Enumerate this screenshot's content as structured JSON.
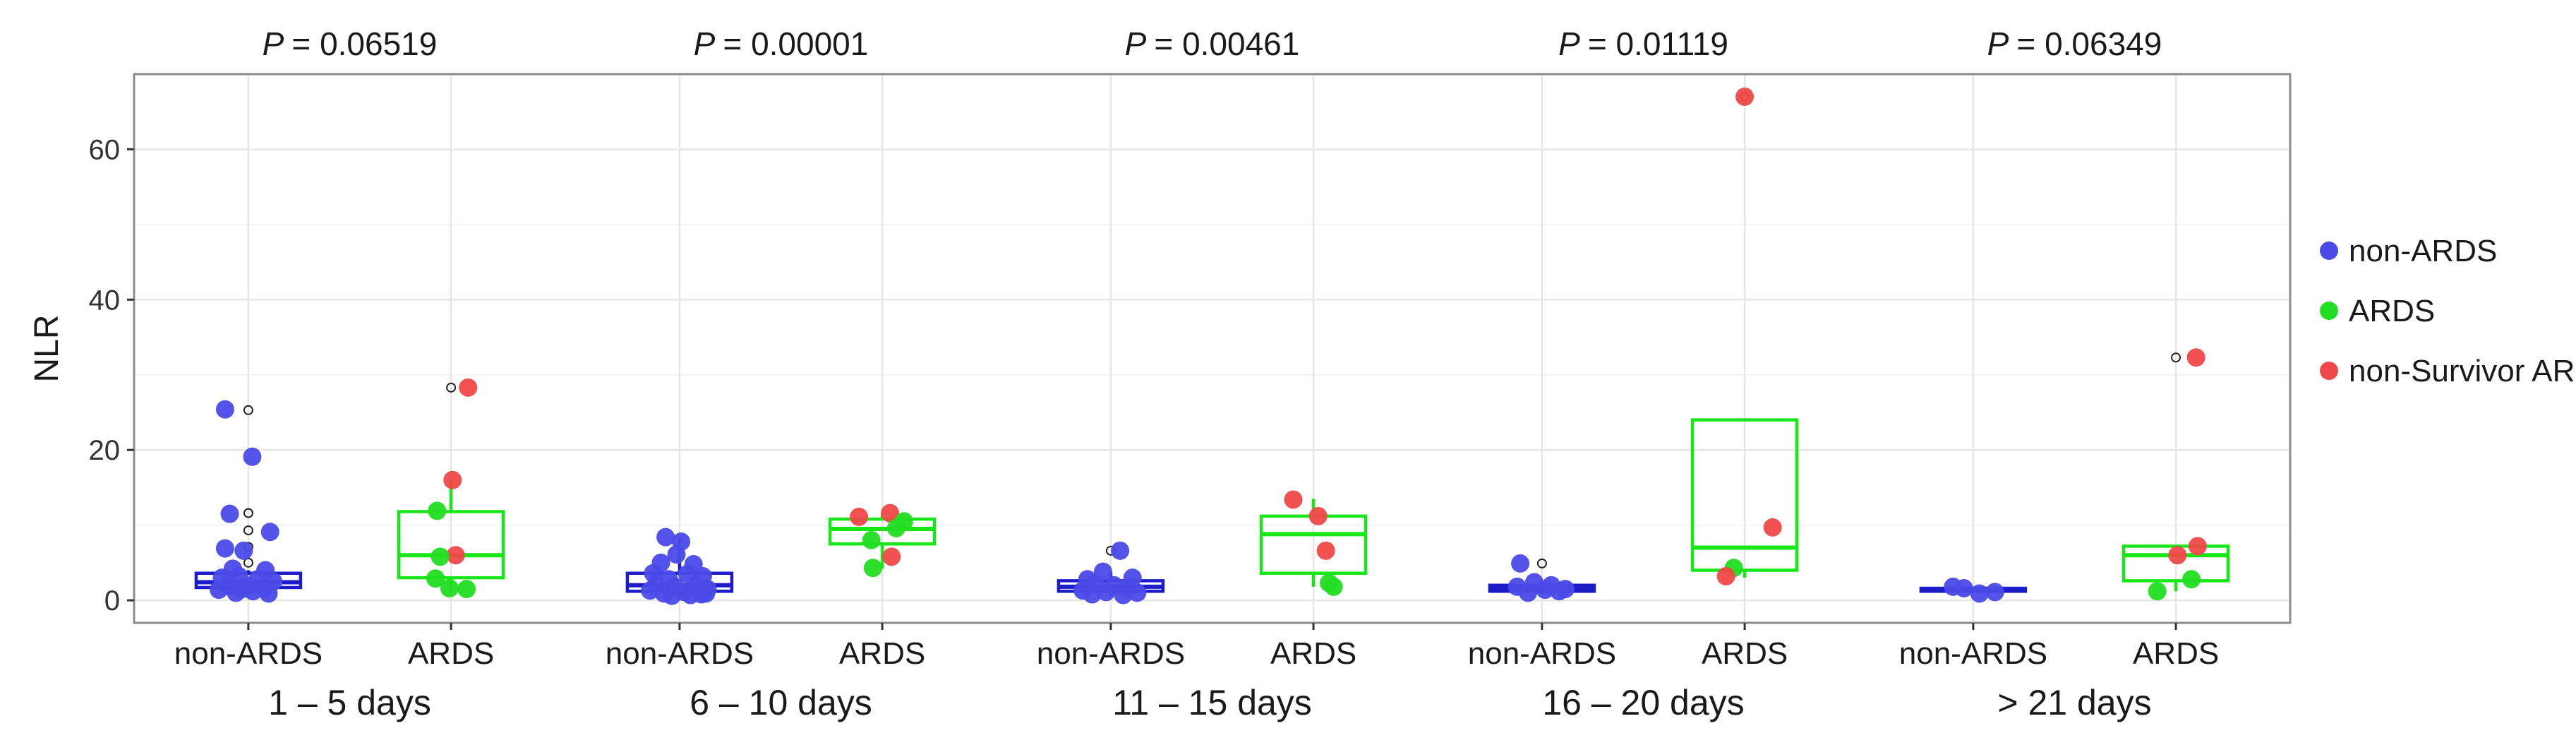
{
  "chart_data": {
    "type": "box",
    "ylabel": "NLR",
    "xlabel": "",
    "ylim": [
      -3,
      70
    ],
    "yticks": [
      0,
      20,
      40,
      60
    ],
    "grid": true,
    "legend_position": "right",
    "colors": {
      "non-ARDS": "#4a4ae8",
      "ARDS": "#22dd22",
      "non-Survivor ARDS": "#f04848",
      "box_non-ARDS": "#1c1cc8",
      "box_ARDS": "#19e619",
      "grid": "#e6e6e6",
      "panel_border": "#8c8c8c"
    },
    "legend": [
      {
        "label": "non-ARDS",
        "color": "#4a4ae8"
      },
      {
        "label": "ARDS",
        "color": "#22dd22"
      },
      {
        "label": "non-Survivor ARDS",
        "color": "#f04848"
      }
    ],
    "groups": [
      {
        "label": "1 – 5 days",
        "p_prefix": "P",
        "p_value": "= 0.06519",
        "boxes": [
          {
            "category": "non-ARDS",
            "q1": 1.7,
            "median": 2.4,
            "q3": 3.6,
            "whisker_low": 0.8,
            "whisker_high": 4.0,
            "outliers": [
              25.3,
              11.6,
              9.3,
              7.1,
              5.0
            ],
            "points": [
              {
                "x": -0.3,
                "y": 25.4,
                "group": "non-ARDS"
              },
              {
                "x": 0.05,
                "y": 19.1,
                "group": "non-ARDS"
              },
              {
                "x": -0.24,
                "y": 11.5,
                "group": "non-ARDS"
              },
              {
                "x": 0.28,
                "y": 9.1,
                "group": "non-ARDS"
              },
              {
                "x": -0.3,
                "y": 6.9,
                "group": "non-ARDS"
              },
              {
                "x": -0.06,
                "y": 6.6,
                "group": "non-ARDS"
              },
              {
                "x": 0.22,
                "y": 4.0,
                "group": "non-ARDS"
              },
              {
                "x": -0.2,
                "y": 4.2,
                "group": "non-ARDS"
              },
              {
                "x": -0.34,
                "y": 3.0,
                "group": "non-ARDS"
              },
              {
                "x": -0.12,
                "y": 3.2,
                "group": "non-ARDS"
              },
              {
                "x": 0.12,
                "y": 2.8,
                "group": "non-ARDS"
              },
              {
                "x": 0.32,
                "y": 2.5,
                "group": "non-ARDS"
              },
              {
                "x": -0.26,
                "y": 2.0,
                "group": "non-ARDS"
              },
              {
                "x": -0.02,
                "y": 1.9,
                "group": "non-ARDS"
              },
              {
                "x": 0.2,
                "y": 1.6,
                "group": "non-ARDS"
              },
              {
                "x": -0.38,
                "y": 1.4,
                "group": "non-ARDS"
              },
              {
                "x": 0.06,
                "y": 1.2,
                "group": "non-ARDS"
              },
              {
                "x": -0.16,
                "y": 1.0,
                "group": "non-ARDS"
              },
              {
                "x": 0.26,
                "y": 0.9,
                "group": "non-ARDS"
              },
              {
                "x": -0.08,
                "y": 1.5,
                "group": "non-ARDS"
              }
            ]
          },
          {
            "category": "ARDS",
            "q1": 3.0,
            "median": 6.0,
            "q3": 11.8,
            "whisker_low": 1.5,
            "whisker_high": 16.0,
            "outliers": [
              28.3
            ],
            "points": [
              {
                "x": 0.22,
                "y": 28.3,
                "group": "non-Survivor ARDS"
              },
              {
                "x": 0.02,
                "y": 16.0,
                "group": "non-Survivor ARDS"
              },
              {
                "x": -0.18,
                "y": 11.9,
                "group": "ARDS"
              },
              {
                "x": 0.06,
                "y": 6.0,
                "group": "non-Survivor ARDS"
              },
              {
                "x": -0.14,
                "y": 5.8,
                "group": "ARDS"
              },
              {
                "x": -0.2,
                "y": 2.9,
                "group": "ARDS"
              },
              {
                "x": -0.02,
                "y": 1.6,
                "group": "ARDS"
              },
              {
                "x": 0.2,
                "y": 1.5,
                "group": "ARDS"
              }
            ]
          }
        ]
      },
      {
        "label": "6 – 10 days",
        "p_prefix": "P",
        "p_value": "= 0.00001",
        "boxes": [
          {
            "category": "non-ARDS",
            "q1": 1.2,
            "median": 2.0,
            "q3": 3.6,
            "whisker_low": 0.5,
            "whisker_high": 8.3,
            "outliers": [],
            "points": [
              {
                "x": -0.18,
                "y": 8.4,
                "group": "non-ARDS"
              },
              {
                "x": 0.02,
                "y": 7.8,
                "group": "non-ARDS"
              },
              {
                "x": -0.04,
                "y": 6.1,
                "group": "non-ARDS"
              },
              {
                "x": -0.24,
                "y": 5.0,
                "group": "non-ARDS"
              },
              {
                "x": 0.18,
                "y": 4.8,
                "group": "non-ARDS"
              },
              {
                "x": -0.34,
                "y": 3.6,
                "group": "non-ARDS"
              },
              {
                "x": 0.1,
                "y": 3.5,
                "group": "non-ARDS"
              },
              {
                "x": 0.3,
                "y": 3.2,
                "group": "non-ARDS"
              },
              {
                "x": -0.14,
                "y": 2.8,
                "group": "non-ARDS"
              },
              {
                "x": -0.3,
                "y": 2.2,
                "group": "non-ARDS"
              },
              {
                "x": 0.22,
                "y": 2.0,
                "group": "non-ARDS"
              },
              {
                "x": -0.06,
                "y": 1.8,
                "group": "non-ARDS"
              },
              {
                "x": 0.36,
                "y": 1.5,
                "group": "non-ARDS"
              },
              {
                "x": -0.38,
                "y": 1.3,
                "group": "non-ARDS"
              },
              {
                "x": 0.06,
                "y": 1.1,
                "group": "non-ARDS"
              },
              {
                "x": -0.2,
                "y": 0.9,
                "group": "non-ARDS"
              },
              {
                "x": 0.28,
                "y": 0.8,
                "group": "non-ARDS"
              },
              {
                "x": -0.1,
                "y": 0.6,
                "group": "non-ARDS"
              },
              {
                "x": 0.14,
                "y": 0.7,
                "group": "non-ARDS"
              },
              {
                "x": 0.34,
                "y": 0.9,
                "group": "non-ARDS"
              }
            ]
          },
          {
            "category": "ARDS",
            "q1": 7.5,
            "median": 9.5,
            "q3": 10.8,
            "whisker_low": 4.2,
            "whisker_high": 11.6,
            "outliers": [],
            "points": [
              {
                "x": -0.3,
                "y": 11.1,
                "group": "non-Survivor ARDS"
              },
              {
                "x": 0.1,
                "y": 11.6,
                "group": "non-Survivor ARDS"
              },
              {
                "x": 0.28,
                "y": 10.5,
                "group": "ARDS"
              },
              {
                "x": 0.18,
                "y": 9.6,
                "group": "ARDS"
              },
              {
                "x": -0.14,
                "y": 8.0,
                "group": "ARDS"
              },
              {
                "x": 0.12,
                "y": 5.8,
                "group": "non-Survivor ARDS"
              },
              {
                "x": -0.12,
                "y": 4.3,
                "group": "ARDS"
              }
            ]
          }
        ]
      },
      {
        "label": "11 – 15 days",
        "p_prefix": "P",
        "p_value": "= 0.00461",
        "boxes": [
          {
            "category": "non-ARDS",
            "q1": 1.2,
            "median": 1.8,
            "q3": 2.6,
            "whisker_low": 0.6,
            "whisker_high": 3.8,
            "outliers": [
              6.6
            ],
            "points": [
              {
                "x": 0.12,
                "y": 6.6,
                "group": "non-ARDS"
              },
              {
                "x": -0.1,
                "y": 3.8,
                "group": "non-ARDS"
              },
              {
                "x": -0.3,
                "y": 2.8,
                "group": "non-ARDS"
              },
              {
                "x": 0.28,
                "y": 3.0,
                "group": "non-ARDS"
              },
              {
                "x": -0.2,
                "y": 2.2,
                "group": "non-ARDS"
              },
              {
                "x": 0.04,
                "y": 2.0,
                "group": "non-ARDS"
              },
              {
                "x": 0.2,
                "y": 1.6,
                "group": "non-ARDS"
              },
              {
                "x": -0.36,
                "y": 1.3,
                "group": "non-ARDS"
              },
              {
                "x": -0.06,
                "y": 1.1,
                "group": "non-ARDS"
              },
              {
                "x": 0.34,
                "y": 1.0,
                "group": "non-ARDS"
              },
              {
                "x": -0.24,
                "y": 0.8,
                "group": "non-ARDS"
              },
              {
                "x": 0.16,
                "y": 0.7,
                "group": "non-ARDS"
              }
            ]
          },
          {
            "category": "ARDS",
            "q1": 3.6,
            "median": 8.8,
            "q3": 11.2,
            "whisker_low": 1.8,
            "whisker_high": 13.5,
            "outliers": [],
            "points": [
              {
                "x": -0.26,
                "y": 13.4,
                "group": "non-Survivor ARDS"
              },
              {
                "x": 0.06,
                "y": 11.2,
                "group": "non-Survivor ARDS"
              },
              {
                "x": 0.16,
                "y": 6.6,
                "group": "non-Survivor ARDS"
              },
              {
                "x": 0.2,
                "y": 2.3,
                "group": "ARDS"
              },
              {
                "x": 0.26,
                "y": 1.8,
                "group": "ARDS"
              }
            ]
          }
        ]
      },
      {
        "label": "16 – 20 days",
        "p_prefix": "P",
        "p_value": "= 0.01119",
        "boxes": [
          {
            "category": "non-ARDS",
            "q1": 1.2,
            "median": 1.6,
            "q3": 2.0,
            "whisker_low": 0.8,
            "whisker_high": 2.4,
            "outliers": [
              4.9
            ],
            "points": [
              {
                "x": -0.28,
                "y": 4.9,
                "group": "non-ARDS"
              },
              {
                "x": -0.1,
                "y": 2.4,
                "group": "non-ARDS"
              },
              {
                "x": 0.12,
                "y": 2.0,
                "group": "non-ARDS"
              },
              {
                "x": -0.32,
                "y": 1.8,
                "group": "non-ARDS"
              },
              {
                "x": 0.3,
                "y": 1.5,
                "group": "non-ARDS"
              },
              {
                "x": 0.04,
                "y": 1.4,
                "group": "non-ARDS"
              },
              {
                "x": 0.22,
                "y": 1.2,
                "group": "non-ARDS"
              },
              {
                "x": -0.18,
                "y": 1.0,
                "group": "non-ARDS"
              }
            ]
          },
          {
            "category": "ARDS",
            "q1": 4.0,
            "median": 7.0,
            "q3": 24.0,
            "whisker_low": 3.0,
            "whisker_high": 24.0,
            "outliers": [
              67.0
            ],
            "points": [
              {
                "x": 0.0,
                "y": 67.0,
                "group": "non-Survivor ARDS"
              },
              {
                "x": 0.36,
                "y": 9.7,
                "group": "non-Survivor ARDS"
              },
              {
                "x": -0.14,
                "y": 4.3,
                "group": "ARDS"
              },
              {
                "x": -0.24,
                "y": 3.2,
                "group": "non-Survivor ARDS"
              }
            ]
          }
        ]
      },
      {
        "label": "> 21 days",
        "p_prefix": "P",
        "p_value": "= 0.06349",
        "boxes": [
          {
            "category": "non-ARDS",
            "q1": 1.2,
            "median": 1.4,
            "q3": 1.6,
            "whisker_low": 1.0,
            "whisker_high": 1.8,
            "outliers": [],
            "points": [
              {
                "x": -0.26,
                "y": 1.8,
                "group": "non-ARDS"
              },
              {
                "x": -0.12,
                "y": 1.6,
                "group": "non-ARDS"
              },
              {
                "x": 0.08,
                "y": 0.9,
                "group": "non-ARDS"
              },
              {
                "x": 0.28,
                "y": 1.1,
                "group": "non-ARDS"
              }
            ]
          },
          {
            "category": "ARDS",
            "q1": 2.6,
            "median": 6.0,
            "q3": 7.2,
            "whisker_low": 1.2,
            "whisker_high": 7.2,
            "outliers": [
              32.3
            ],
            "points": [
              {
                "x": 0.26,
                "y": 32.3,
                "group": "non-Survivor ARDS"
              },
              {
                "x": 0.02,
                "y": 6.0,
                "group": "non-Survivor ARDS"
              },
              {
                "x": 0.28,
                "y": 7.2,
                "group": "non-Survivor ARDS"
              },
              {
                "x": 0.2,
                "y": 2.8,
                "group": "ARDS"
              },
              {
                "x": -0.24,
                "y": 1.2,
                "group": "ARDS"
              }
            ]
          }
        ]
      }
    ]
  }
}
